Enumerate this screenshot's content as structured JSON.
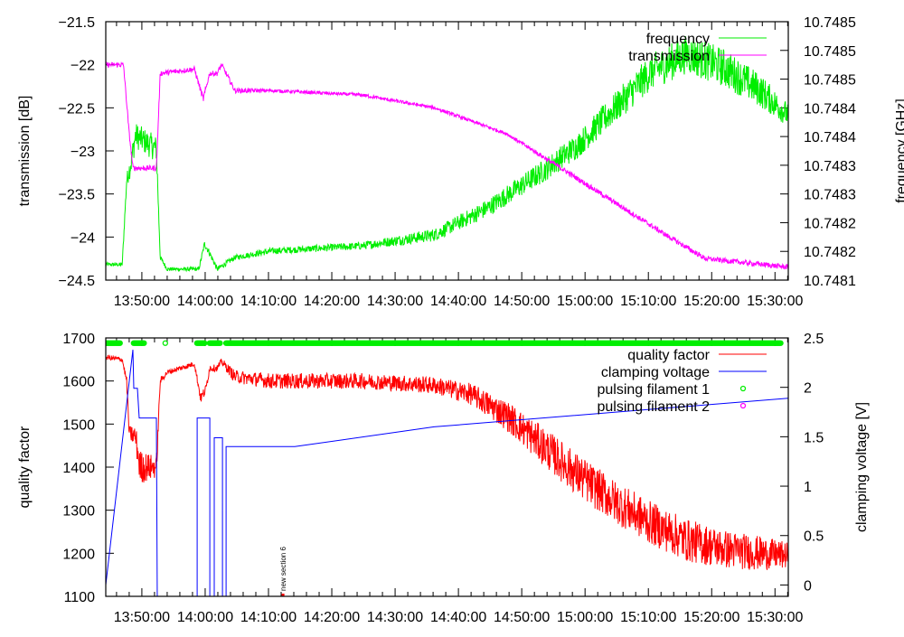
{
  "colors": {
    "frequency": "#00ee00",
    "transmission": "#ff00ff",
    "quality": "#ff0000",
    "clamping": "#0000ff",
    "filament1": "#00ee00",
    "filament2": "#ff00ff"
  },
  "chart_data": [
    {
      "type": "line",
      "title": "",
      "xlabel": "",
      "x_unit": "minutes since 13:00",
      "xlim": [
        44.3,
        152.1
      ],
      "x_ticks": [
        50,
        60,
        70,
        80,
        90,
        100,
        110,
        120,
        130,
        140,
        150
      ],
      "x_tick_labels": [
        "13:50:00",
        "14:00:00",
        "14:10:00",
        "14:20:00",
        "14:30:00",
        "14:40:00",
        "14:50:00",
        "15:00:00",
        "15:10:00",
        "15:20:00",
        "15:30:00"
      ],
      "ylabel": "transmission [dB]",
      "ylim": [
        -24.5,
        -21.5
      ],
      "y_ticks": [
        -21.5,
        -22,
        -22.5,
        -23,
        -23.5,
        -24,
        -24.5
      ],
      "y_tick_labels": [
        "-21.5",
        "-22",
        "-22.5",
        "-23",
        "-23.5",
        "-24",
        "-24.5"
      ],
      "y2label": "frequency [GHz]",
      "y2lim": [
        10.74812,
        10.74852
      ],
      "y2_tick_labels": [
        "10.7481",
        "10.7482",
        "10.7482",
        "10.7483",
        "10.7483",
        "10.7484",
        "10.7484",
        "10.7485",
        "10.7485",
        "10.7485"
      ],
      "legend": "top-right",
      "series": [
        {
          "name": "frequency",
          "axis": "y2",
          "color": "#00ee00",
          "x": [
            44.3,
            46.9,
            47.6,
            48.3,
            49.0,
            52.3,
            52.9,
            54.0,
            59.0,
            59.9,
            60.7,
            61.9,
            64.7,
            70.4,
            84.7,
            96.2,
            104.7,
            113.3,
            119.0,
            124.7,
            130.4,
            136.1,
            141.9,
            147.6,
            152.1
          ],
          "y": [
            10.748144,
            10.748144,
            10.748274,
            10.748302,
            10.748344,
            10.748323,
            10.748155,
            10.748137,
            10.748137,
            10.748176,
            10.748162,
            10.748137,
            10.748155,
            10.748165,
            10.748173,
            10.74819,
            10.748232,
            10.748288,
            10.74833,
            10.748386,
            10.748442,
            10.74847,
            10.748449,
            10.748414,
            10.748375
          ],
          "noise": [
            3e-06,
            3e-06,
            1e-05,
            2e-05,
            2e-05,
            2e-05,
            4e-06,
            3e-06,
            3e-06,
            5e-06,
            5e-06,
            4e-06,
            4e-06,
            5e-06,
            6e-06,
            1e-05,
            1.4e-05,
            1.8e-05,
            2e-05,
            2.4e-05,
            2.8e-05,
            3e-05,
            3e-05,
            2.6e-05,
            1.8e-05
          ]
        },
        {
          "name": "transmission",
          "axis": "y",
          "color": "#ff00ff",
          "x": [
            44.3,
            47.1,
            48.0,
            48.6,
            52.3,
            52.9,
            58.3,
            59.7,
            60.7,
            61.9,
            62.6,
            64.7,
            70.4,
            84.7,
            96.2,
            107.6,
            116.2,
            124.7,
            133.3,
            139.0,
            152.1
          ],
          "y": [
            -22.0,
            -22.0,
            -22.8,
            -23.2,
            -23.2,
            -22.1,
            -22.05,
            -22.4,
            -22.1,
            -22.1,
            -22.0,
            -22.3,
            -22.3,
            -22.35,
            -22.5,
            -22.8,
            -23.2,
            -23.6,
            -24.0,
            -24.25,
            -24.35
          ],
          "noise": [
            0.03,
            0.03,
            0.03,
            0.03,
            0.03,
            0.03,
            0.03,
            0.04,
            0.03,
            0.03,
            0.03,
            0.03,
            0.02,
            0.02,
            0.02,
            0.02,
            0.03,
            0.03,
            0.03,
            0.03,
            0.03
          ]
        }
      ]
    },
    {
      "type": "line",
      "title": "",
      "xlabel": "",
      "x_unit": "minutes since 13:00",
      "xlim": [
        44.3,
        152.1
      ],
      "x_ticks": [
        50,
        60,
        70,
        80,
        90,
        100,
        110,
        120,
        130,
        140,
        150
      ],
      "x_tick_labels": [
        "13:50:00",
        "14:00:00",
        "14:10:00",
        "14:20:00",
        "14:30:00",
        "14:40:00",
        "14:50:00",
        "15:00:00",
        "15:10:00",
        "15:20:00",
        "15:30:00"
      ],
      "ylabel": "quality factor",
      "ylim": [
        1100,
        1700
      ],
      "y_ticks": [
        1100,
        1200,
        1300,
        1400,
        1500,
        1600,
        1700
      ],
      "y_tick_labels": [
        "1100",
        "1200",
        "1300",
        "1400",
        "1500",
        "1600",
        "1700"
      ],
      "y2label": "clamping voltage [V]",
      "y2lim": [
        -0.115,
        2.5
      ],
      "y2_ticks": [
        0,
        0.5,
        1,
        1.5,
        2,
        2.5
      ],
      "y2_tick_labels": [
        "0",
        "0.5",
        "1",
        "1.5",
        "2",
        "2.5"
      ],
      "legend": "top-right",
      "series": [
        {
          "name": "quality factor",
          "axis": "y",
          "color": "#ff0000",
          "x": [
            44.3,
            46.9,
            47.6,
            48.0,
            49.0,
            49.7,
            52.3,
            52.9,
            54.0,
            58.3,
            59.3,
            60.1,
            60.7,
            61.9,
            62.6,
            64.7,
            70.4,
            84.7,
            96.2,
            101.9,
            107.6,
            113.3,
            119.0,
            124.7,
            130.4,
            136.1,
            141.9,
            147.6,
            152.1
          ],
          "y": [
            1655,
            1650,
            1600,
            1480,
            1470,
            1400,
            1400,
            1600,
            1620,
            1640,
            1560,
            1580,
            1630,
            1630,
            1645,
            1610,
            1600,
            1600,
            1590,
            1570,
            1520,
            1450,
            1380,
            1320,
            1270,
            1230,
            1210,
            1200,
            1195
          ],
          "noise": [
            6,
            6,
            10,
            15,
            30,
            40,
            25,
            8,
            6,
            6,
            12,
            12,
            8,
            8,
            8,
            15,
            18,
            18,
            20,
            25,
            35,
            45,
            50,
            50,
            50,
            50,
            45,
            40,
            30
          ]
        },
        {
          "name": "clamping voltage",
          "axis": "y2",
          "color": "#0000ff",
          "x": [
            44.3,
            48.59,
            48.73,
            49.3,
            49.59,
            52.3,
            52.44,
            58.73,
            58.73,
            60.73,
            60.73,
            61.44,
            61.44,
            62.73,
            62.73,
            63.3,
            63.3,
            74.16,
            96.16,
            152.1
          ],
          "y": [
            0.0,
            2.38,
            1.99,
            1.99,
            1.69,
            1.69,
            -0.2,
            -0.2,
            1.69,
            1.69,
            -0.2,
            -0.2,
            1.49,
            1.49,
            -0.2,
            -0.2,
            1.4,
            1.4,
            1.6,
            1.89
          ]
        },
        {
          "name": "pulsing filament 1",
          "axis": "y",
          "color": "#00ee00",
          "marker": "circle",
          "y_level": 1688,
          "intervals": [
            [
              44.3,
              46.6
            ],
            [
              48.7,
              50.4
            ],
            [
              53.7,
              53.7
            ],
            [
              58.7,
              59.9
            ],
            [
              60.7,
              62.4
            ],
            [
              63.3,
              150.9
            ]
          ]
        },
        {
          "name": "pulsing filament 2",
          "axis": "y",
          "color": "#ff00ff",
          "marker": "circle",
          "intervals": []
        }
      ],
      "annotations": [
        {
          "text": "new section 6",
          "x": 72.3
        }
      ]
    }
  ]
}
